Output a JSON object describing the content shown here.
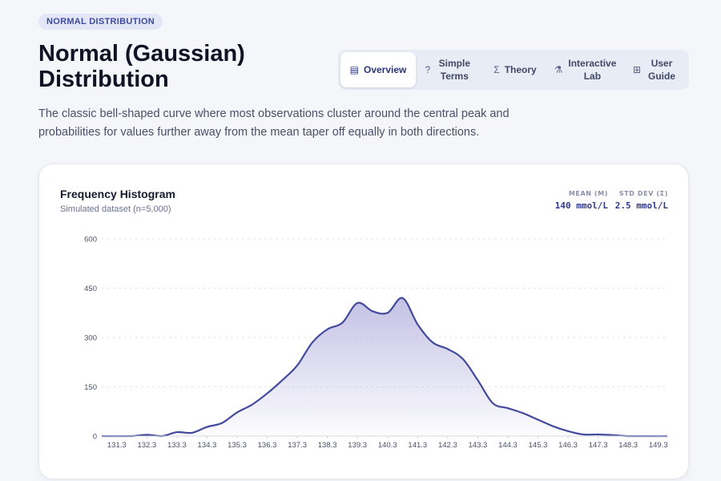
{
  "badge": "NORMAL DISTRIBUTION",
  "title": "Normal (Gaussian) Distribution",
  "tabs": [
    {
      "label": "Overview",
      "icon": "layout-icon",
      "glyph": "▤",
      "active": true
    },
    {
      "label": "Simple Terms",
      "icon": "help-circle-icon",
      "glyph": "?",
      "active": false
    },
    {
      "label": "Theory",
      "icon": "sigma-icon",
      "glyph": "Σ",
      "active": false
    },
    {
      "label": "Interactive Lab",
      "icon": "flask-icon",
      "glyph": "⚗",
      "active": false
    },
    {
      "label": "User Guide",
      "icon": "book-icon",
      "glyph": "⊞",
      "active": false
    }
  ],
  "description": "The classic bell-shaped curve where most observations cluster around the central peak and probabilities for values further away from the mean taper off equally in both directions.",
  "card": {
    "title": "Frequency Histogram",
    "subtitle": "Simulated dataset (n=5,000)",
    "stats": {
      "mean_label": "MEAN (Μ)",
      "mean_value": "140 mmol/L",
      "sd_label": "STD DEV (Σ)",
      "sd_value": "2.5 mmol/L"
    }
  },
  "colors": {
    "accent": "#424a9c",
    "fill_top": "#b9b6e0",
    "grid": "#e3e6ee"
  },
  "chart_data": {
    "type": "area",
    "ylim": [
      0,
      600
    ],
    "yticks": [
      0,
      150,
      300,
      450,
      600
    ],
    "xlim": [
      130.8,
      149.6
    ],
    "xticks": [
      "131.3",
      "132.3",
      "133.3",
      "134.3",
      "135.3",
      "136.3",
      "137.3",
      "138.3",
      "139.3",
      "140.3",
      "141.3",
      "142.3",
      "143.3",
      "144.3",
      "145.3",
      "146.3",
      "147.3",
      "148.3",
      "149.3"
    ],
    "grid": true,
    "series": [
      {
        "x": [
          130.8,
          131.3,
          131.8,
          132.3,
          132.8,
          133.3,
          133.8,
          134.3,
          134.8,
          135.3,
          135.8,
          136.3,
          136.8,
          137.3,
          137.8,
          138.3,
          138.8,
          139.3,
          139.8,
          140.3,
          140.8,
          141.3,
          141.8,
          142.3,
          142.8,
          143.3,
          143.8,
          144.3,
          144.8,
          145.3,
          145.8,
          146.3,
          146.8,
          147.3,
          147.8,
          148.3,
          148.8,
          149.3,
          149.6
        ],
        "y": [
          0,
          0,
          0,
          4,
          0,
          12,
          10,
          28,
          40,
          72,
          96,
          130,
          170,
          215,
          285,
          325,
          345,
          405,
          380,
          375,
          420,
          340,
          285,
          265,
          235,
          170,
          100,
          85,
          70,
          50,
          30,
          15,
          5,
          5,
          3,
          0,
          0,
          0,
          0
        ]
      }
    ]
  }
}
